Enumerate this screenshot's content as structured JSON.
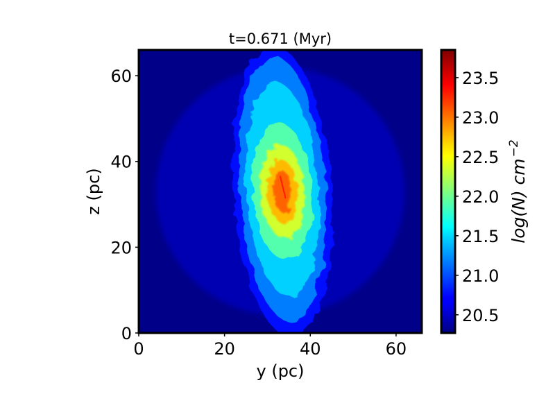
{
  "chart_data": {
    "type": "heatmap",
    "title": "t=0.671 (Myr)",
    "xlabel": "y (pc)",
    "ylabel": "z (pc)",
    "xlim": [
      0,
      66
    ],
    "ylim": [
      0,
      66
    ],
    "xticks": [
      0,
      20,
      40,
      60
    ],
    "yticks": [
      0,
      20,
      40,
      60
    ],
    "colormap": "jet",
    "colorbar": {
      "label": "log(N) cm",
      "label_exponent": "−2",
      "range": [
        20.27,
        23.85
      ],
      "ticks": [
        20.5,
        21.0,
        21.5,
        22.0,
        22.5,
        23.0,
        23.5
      ],
      "tick_labels": [
        "20.5",
        "21.0",
        "21.5",
        "22.0",
        "22.5",
        "23.0",
        "23.5"
      ]
    },
    "background_level": 20.3,
    "disk": {
      "center_y": 33,
      "center_z": 33,
      "radius": 29,
      "level": 20.45
    },
    "cloud_core": {
      "center_y": 33.5,
      "center_z": 33,
      "peak_level": 23.3
    },
    "colors": {
      "low": "#00007f",
      "mid": "#7fff7f",
      "high": "#7f0000"
    }
  }
}
